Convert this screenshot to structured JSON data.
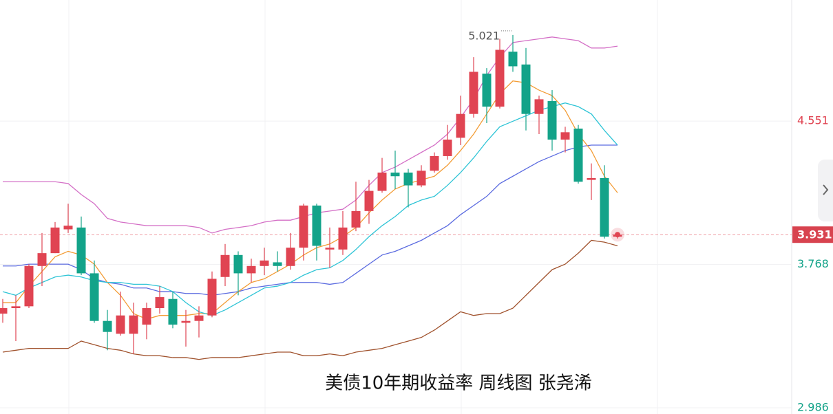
{
  "chart_data": {
    "type": "candlestick",
    "title": "美债10年期收益率 周线图  张尧浠",
    "open": [
      3.5,
      3.53,
      3.54,
      3.76,
      3.83,
      3.96,
      3.97,
      3.72,
      3.46,
      3.39,
      3.39,
      3.44,
      3.53,
      3.58,
      3.45,
      3.46,
      3.49,
      3.7,
      3.82,
      3.72,
      3.76,
      3.78,
      3.76,
      3.86,
      4.09,
      3.85,
      3.85,
      3.97,
      4.06,
      4.17,
      4.27,
      4.27,
      4.2,
      4.28,
      4.36,
      4.46,
      4.59,
      4.81,
      4.63,
      4.93,
      4.86,
      4.59,
      4.66,
      4.45,
      4.51,
      4.23,
      4.24,
      3.92
    ],
    "high": [
      3.58,
      3.6,
      3.77,
      3.94,
      4.0,
      4.1,
      4.03,
      3.79,
      3.52,
      3.62,
      3.56,
      3.56,
      3.65,
      3.62,
      3.52,
      3.54,
      3.73,
      3.88,
      3.84,
      3.8,
      3.86,
      3.84,
      3.94,
      4.1,
      4.1,
      3.97,
      4.06,
      4.22,
      4.23,
      4.35,
      4.39,
      4.29,
      4.31,
      4.38,
      4.53,
      4.69,
      4.9,
      4.84,
      5.0,
      5.021,
      4.95,
      4.69,
      4.72,
      4.52,
      4.53,
      4.32,
      4.31,
      3.94
    ],
    "low": [
      3.45,
      3.35,
      3.53,
      3.65,
      3.83,
      3.94,
      3.71,
      3.45,
      3.3,
      3.38,
      3.28,
      3.36,
      3.5,
      3.42,
      3.32,
      3.37,
      3.48,
      3.65,
      3.6,
      3.67,
      3.71,
      3.73,
      3.74,
      3.79,
      3.79,
      3.75,
      3.82,
      3.95,
      3.99,
      4.16,
      4.18,
      4.08,
      4.19,
      4.27,
      4.34,
      4.42,
      4.57,
      4.54,
      4.62,
      4.82,
      4.5,
      4.48,
      4.39,
      4.38,
      4.21,
      4.12,
      3.91,
      3.91
    ],
    "close": [
      3.53,
      3.54,
      3.76,
      3.83,
      3.97,
      3.98,
      3.72,
      3.46,
      3.4,
      3.49,
      3.49,
      3.53,
      3.59,
      3.44,
      3.46,
      3.49,
      3.69,
      3.82,
      3.72,
      3.76,
      3.79,
      3.76,
      3.86,
      4.09,
      3.87,
      3.86,
      3.97,
      4.06,
      4.17,
      4.27,
      4.25,
      4.2,
      4.28,
      4.36,
      4.45,
      4.59,
      4.82,
      4.63,
      4.94,
      4.85,
      4.59,
      4.67,
      4.45,
      4.49,
      4.22,
      4.24,
      3.92,
      3.931
    ],
    "up_color": "#e04452",
    "down_color": "#13a389",
    "lines": [
      {
        "color": "#d46fc6",
        "values": [
          4.22,
          4.22,
          4.22,
          4.22,
          4.22,
          4.21,
          4.15,
          4.1,
          4.02,
          4.0,
          3.99,
          3.98,
          3.98,
          3.98,
          3.98,
          3.97,
          3.94,
          3.96,
          3.97,
          3.98,
          4.0,
          4.01,
          4.01,
          4.03,
          4.05,
          4.06,
          4.07,
          4.12,
          4.2,
          4.27,
          4.3,
          4.34,
          4.38,
          4.42,
          4.48,
          4.57,
          4.67,
          4.8,
          4.9,
          4.98,
          4.99,
          5.0,
          5.01,
          5.0,
          4.99,
          4.95,
          4.95,
          4.96
        ]
      },
      {
        "color": "#5b6be0",
        "values": [
          3.76,
          3.76,
          3.77,
          3.77,
          3.77,
          3.77,
          3.74,
          3.69,
          3.67,
          3.66,
          3.64,
          3.64,
          3.62,
          3.62,
          3.61,
          3.61,
          3.6,
          3.61,
          3.62,
          3.64,
          3.65,
          3.66,
          3.67,
          3.67,
          3.67,
          3.66,
          3.67,
          3.72,
          3.77,
          3.82,
          3.84,
          3.87,
          3.9,
          3.94,
          3.98,
          4.04,
          4.09,
          4.14,
          4.21,
          4.25,
          4.29,
          4.33,
          4.36,
          4.39,
          4.41,
          4.42,
          4.42,
          4.42
        ]
      },
      {
        "color": "#a0522d",
        "values": [
          3.29,
          3.3,
          3.31,
          3.31,
          3.31,
          3.31,
          3.35,
          3.33,
          3.31,
          3.3,
          3.28,
          3.27,
          3.27,
          3.26,
          3.26,
          3.25,
          3.26,
          3.26,
          3.26,
          3.27,
          3.28,
          3.29,
          3.29,
          3.27,
          3.27,
          3.28,
          3.27,
          3.29,
          3.3,
          3.31,
          3.33,
          3.35,
          3.37,
          3.41,
          3.46,
          3.51,
          3.49,
          3.5,
          3.5,
          3.53,
          3.6,
          3.67,
          3.74,
          3.77,
          3.83,
          3.9,
          3.89,
          3.87
        ]
      },
      {
        "color": "#f39c35",
        "values": [
          3.56,
          3.56,
          3.65,
          3.73,
          3.81,
          3.84,
          3.82,
          3.77,
          3.67,
          3.6,
          3.5,
          3.47,
          3.49,
          3.49,
          3.49,
          3.5,
          3.5,
          3.56,
          3.62,
          3.67,
          3.69,
          3.73,
          3.77,
          3.82,
          3.86,
          3.88,
          3.92,
          3.97,
          4.05,
          4.12,
          4.18,
          4.21,
          4.23,
          4.25,
          4.31,
          4.39,
          4.48,
          4.59,
          4.7,
          4.77,
          4.76,
          4.72,
          4.69,
          4.61,
          4.48,
          4.39,
          4.25,
          4.16
        ]
      },
      {
        "color": "#2ec4d6",
        "values": [
          3.62,
          3.6,
          3.64,
          3.67,
          3.7,
          3.71,
          3.7,
          3.68,
          3.67,
          3.67,
          3.66,
          3.66,
          3.65,
          3.62,
          3.56,
          3.51,
          3.49,
          3.52,
          3.56,
          3.6,
          3.64,
          3.65,
          3.67,
          3.71,
          3.74,
          3.75,
          3.79,
          3.85,
          3.92,
          3.98,
          4.03,
          4.09,
          4.12,
          4.14,
          4.2,
          4.27,
          4.35,
          4.44,
          4.52,
          4.55,
          4.58,
          4.61,
          4.63,
          4.65,
          4.63,
          4.59,
          4.5,
          4.42
        ]
      }
    ],
    "ylim": [
      2.952,
      5.212
    ],
    "yticks": [
      2.986,
      3.768,
      4.551
    ],
    "ytick_colors": [
      "#13a389",
      "#13a389",
      "#e04452"
    ],
    "grid": true
  }
}
